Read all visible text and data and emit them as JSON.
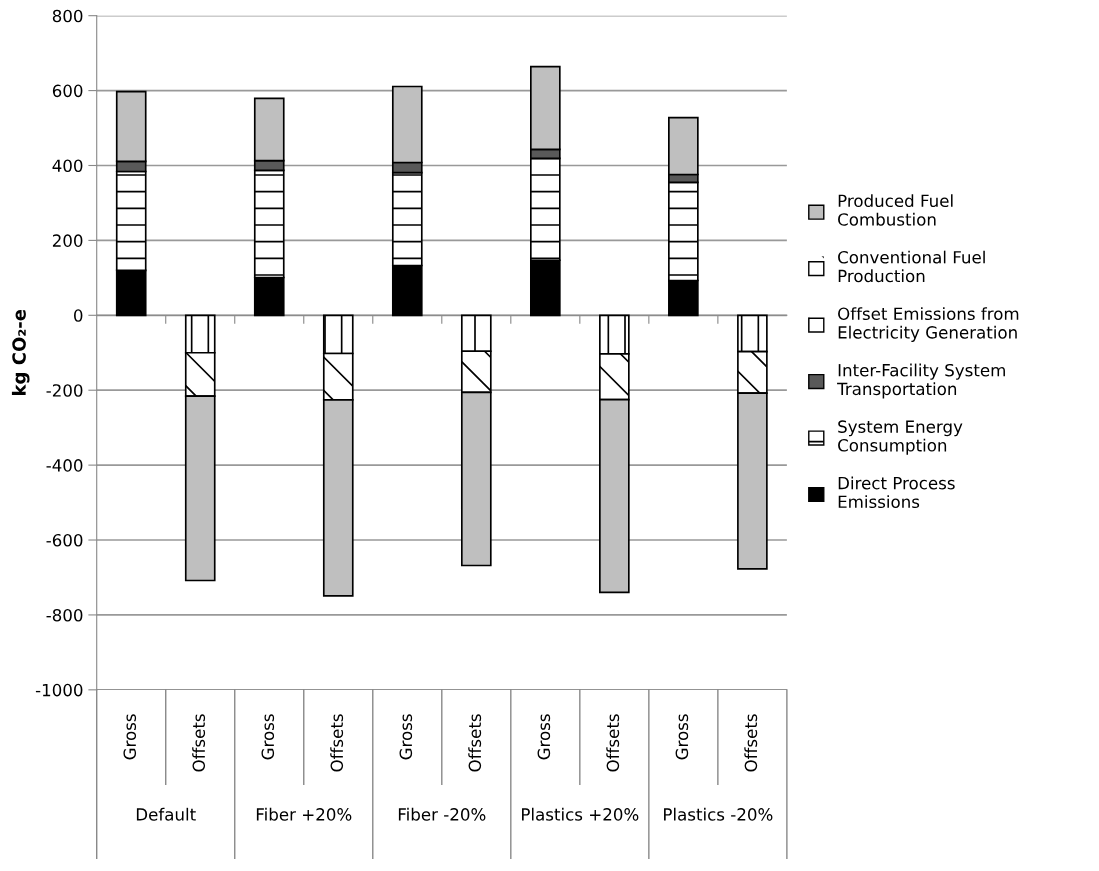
{
  "chart_data": {
    "type": "bar",
    "stacked": true,
    "ylabel": "kg CO₂-e",
    "categories": [
      "Gross",
      "Offsets",
      "Gross",
      "Offsets",
      "Gross",
      "Offsets",
      "Gross",
      "Offsets",
      "Gross",
      "Offsets"
    ],
    "annotations": [
      "Default",
      "Fiber +20%",
      "Fiber -20%",
      "Plastics +20%",
      "Plastics -20%"
    ],
    "series": [
      {
        "name": "Direct Process Emissions",
        "color": "#000000",
        "values": [
          120,
          null,
          101,
          null,
          133,
          null,
          147,
          null,
          93,
          null
        ]
      },
      {
        "name": "System Energy Consumption",
        "color": "#ffffff",
        "values": [
          264,
          null,
          286,
          null,
          248,
          null,
          272,
          null,
          262,
          null
        ]
      },
      {
        "name": "Inter-Facility System Transportation",
        "color": "#595959",
        "values": [
          27,
          null,
          26,
          null,
          27,
          null,
          24,
          null,
          21,
          null
        ]
      },
      {
        "name": "Offset Emissions from Electricity Generation",
        "color": "#ffffff",
        "values": [
          null,
          -100,
          null,
          -102,
          null,
          -96,
          null,
          -103,
          null,
          -97
        ]
      },
      {
        "name": "Conventional Fuel Production",
        "color": "#ffffff",
        "values": [
          null,
          -116,
          null,
          -124,
          null,
          -110,
          null,
          -122,
          null,
          -111
        ]
      },
      {
        "name": "Produced Fuel Combustion",
        "color": "#bfbfbf",
        "values": [
          186,
          -492,
          166,
          -523,
          203,
          -462,
          221,
          -515,
          152,
          -469
        ]
      }
    ],
    "ylim": [
      -1000,
      800
    ],
    "yticks": [
      -1000,
      -800,
      -600,
      -400,
      -200,
      0,
      200,
      400,
      600,
      800
    ],
    "grid": "y",
    "legend": "right"
  }
}
